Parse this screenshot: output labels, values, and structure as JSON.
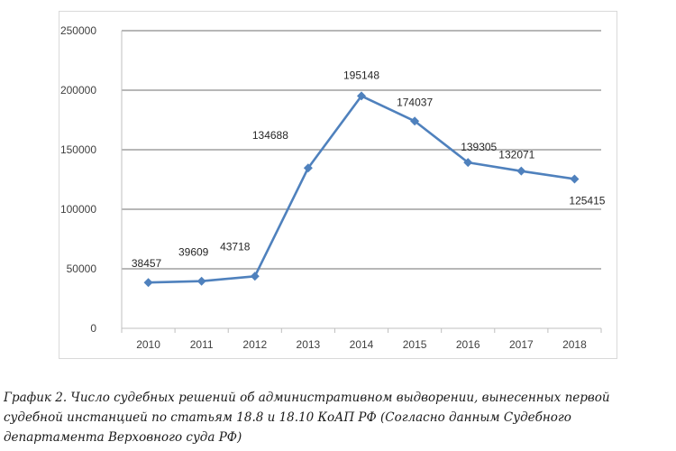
{
  "chart_data": {
    "type": "line",
    "categories": [
      "2010",
      "2011",
      "2012",
      "2013",
      "2014",
      "2015",
      "2016",
      "2017",
      "2018"
    ],
    "series": [
      {
        "values": [
          38457,
          39609,
          43718,
          134688,
          195148,
          174037,
          139305,
          132071,
          125415
        ]
      }
    ],
    "data_labels": [
      "38457",
      "39609",
      "43718",
      "134688",
      "195148",
      "174037",
      "139305",
      "132071",
      "125415"
    ],
    "yticks": [
      0,
      50000,
      100000,
      150000,
      200000,
      250000
    ],
    "ytick_labels": [
      "0",
      "50000",
      "100000",
      "150000",
      "200000",
      "250000"
    ],
    "ylim": [
      0,
      250000
    ],
    "grid": true,
    "line_color": "#4f81bd",
    "grid_color": "#8c8c8c"
  },
  "caption": "График 2. Число судебных решений об административном выдворении, вынесенных первой судебной инстанцией по статьям 18.8 и 18.10 КоАП РФ (Согласно данным Судебного департамента Верховного суда РФ)"
}
